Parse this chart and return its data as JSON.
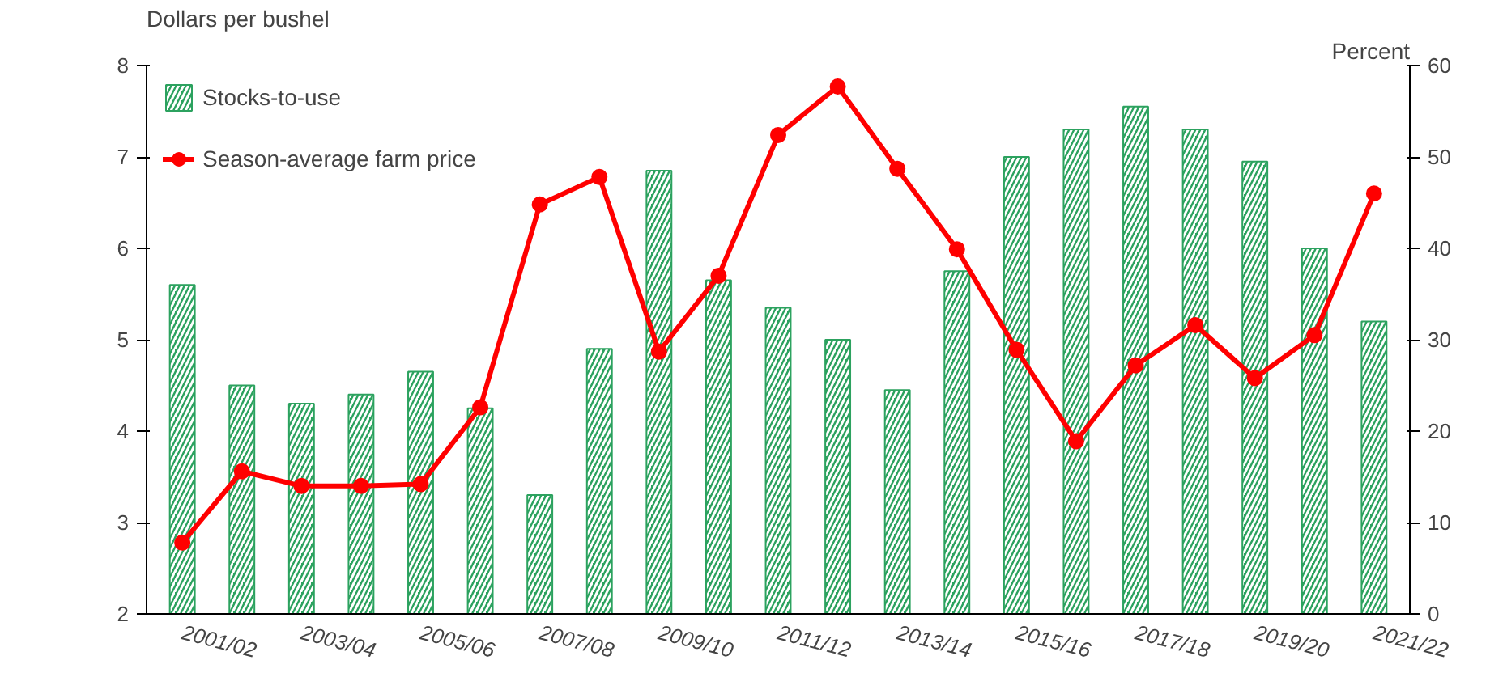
{
  "chart_data": {
    "type": "bar",
    "ylabel": "Dollars per bushel",
    "y2label": "Percent",
    "categories": [
      "2001/02",
      null,
      "2003/04",
      null,
      "2005/06",
      null,
      "2007/08",
      null,
      "2009/10",
      null,
      "2011/12",
      null,
      "2013/14",
      null,
      "2015/16",
      null,
      "2017/18",
      null,
      "2019/20",
      null,
      "2021/22"
    ],
    "series": [
      {
        "name": "Stocks-to-use",
        "axis": "y2",
        "color": "#2ca25f",
        "values": [
          36,
          25,
          23,
          24,
          26.5,
          22.5,
          13,
          29,
          48.5,
          36.5,
          33.5,
          30,
          24.5,
          37.5,
          50,
          53,
          55.5,
          53,
          49.5,
          40,
          32
        ]
      },
      {
        "name": "Season-average farm price",
        "type": "line",
        "color": "#ff0000",
        "marker": "circle",
        "values": [
          2.78,
          3.56,
          3.4,
          3.4,
          3.42,
          4.26,
          6.48,
          6.78,
          4.87,
          5.7,
          7.24,
          7.77,
          6.87,
          5.99,
          4.89,
          3.89,
          4.72,
          5.16,
          4.58,
          5.05,
          6.6
        ]
      }
    ],
    "ylim": [
      2,
      8
    ],
    "yticks": [
      2,
      3,
      4,
      5,
      6,
      7,
      8
    ],
    "y2lim": [
      0,
      60
    ],
    "y2ticks": [
      0,
      10,
      20,
      30,
      40,
      50,
      60
    ],
    "grid": false,
    "legend": "top left"
  }
}
